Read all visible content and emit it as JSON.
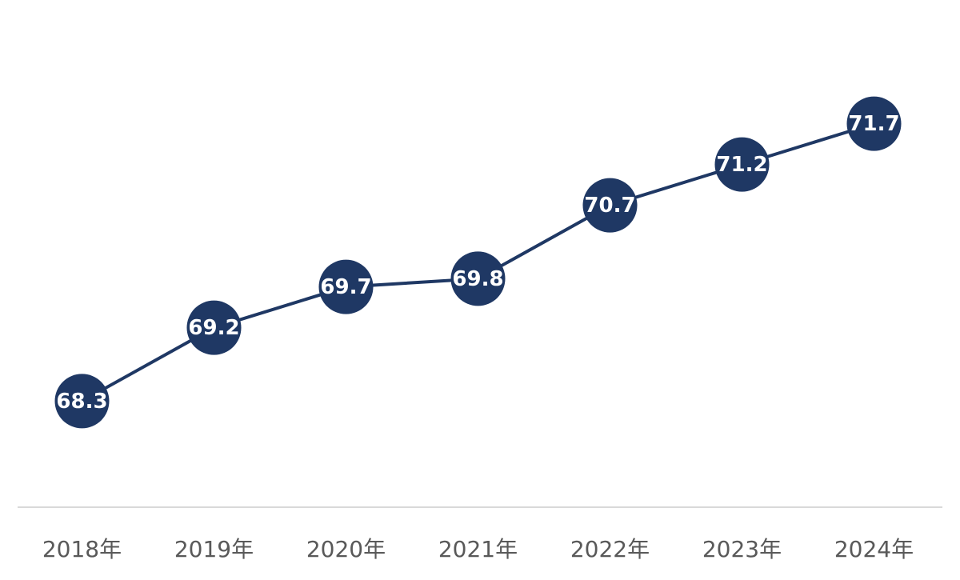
{
  "chart_data": {
    "type": "line",
    "categories": [
      "2018年",
      "2019年",
      "2020年",
      "2021年",
      "2022年",
      "2023年",
      "2024年"
    ],
    "values": [
      68.3,
      69.2,
      69.7,
      69.8,
      70.7,
      71.2,
      71.7
    ],
    "color": "#1f3864",
    "ylim": [
      67,
      73
    ]
  }
}
